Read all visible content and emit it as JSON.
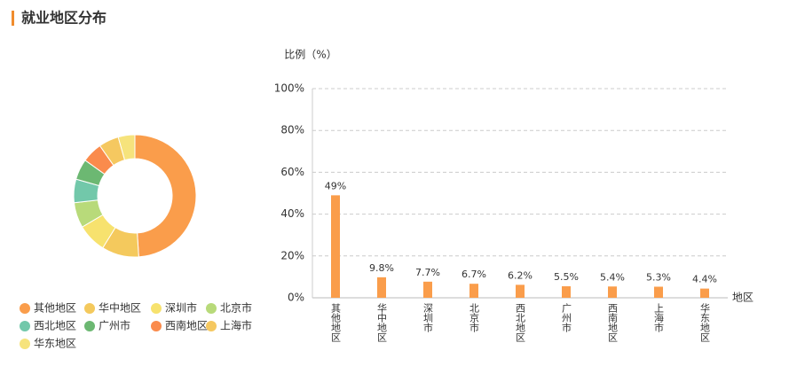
{
  "header": {
    "title": "就业地区分布"
  },
  "chart_data": [
    {
      "type": "pie",
      "categories": [
        "其他地区",
        "华中地区",
        "深圳市",
        "北京市",
        "西北地区",
        "广州市",
        "西南地区",
        "上海市",
        "华东地区"
      ],
      "values": [
        49,
        9.8,
        7.7,
        6.7,
        6.2,
        5.5,
        5.4,
        5.3,
        4.4
      ],
      "colors": [
        "#fa9d4b",
        "#f4c95d",
        "#f7e26e",
        "#b8da7a",
        "#72c8aa",
        "#6cb872",
        "#fa8b4c",
        "#f5c860",
        "#f6e37c"
      ]
    },
    {
      "type": "bar",
      "y_label": "比例（%）",
      "x_label": "地区",
      "categories": [
        "其他地区",
        "华中地区",
        "深圳市",
        "北京市",
        "西北地区",
        "广州市",
        "西南地区",
        "上海市",
        "华东地区"
      ],
      "values": [
        49,
        9.8,
        7.7,
        6.7,
        6.2,
        5.5,
        5.4,
        5.3,
        4.4
      ],
      "value_labels": [
        "49%",
        "9.8%",
        "7.7%",
        "6.7%",
        "6.2%",
        "5.5%",
        "5.4%",
        "5.3%",
        "4.4%"
      ],
      "color": "#fa9d4b",
      "ylim": [
        0,
        100
      ],
      "yticks": [
        {
          "value": 0,
          "label": "0%"
        },
        {
          "value": 20,
          "label": "20%"
        },
        {
          "value": 40,
          "label": "40%"
        },
        {
          "value": 60,
          "label": "60%"
        },
        {
          "value": 80,
          "label": "80%"
        },
        {
          "value": 100,
          "label": "100%"
        }
      ],
      "grid": true
    }
  ]
}
